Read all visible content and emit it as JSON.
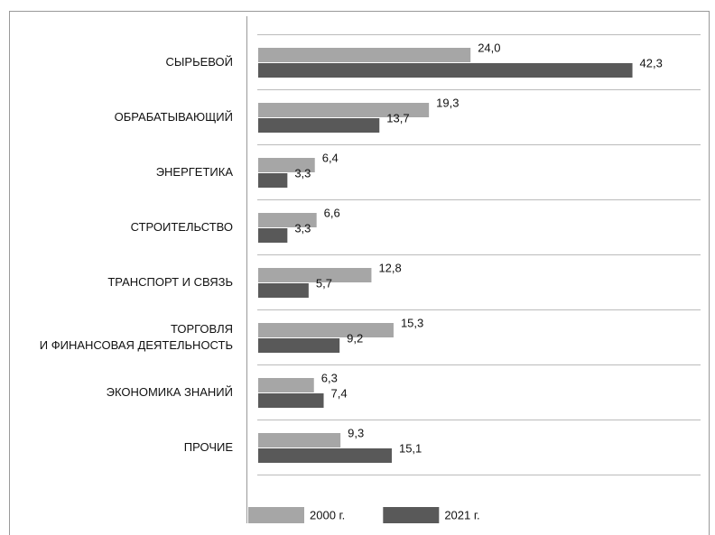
{
  "chart_data": {
    "type": "bar",
    "orientation": "horizontal",
    "categories": [
      "СЫРЬЕВОЙ",
      "ОБРАБАТЫВАЮЩИЙ",
      "ЭНЕРГЕТИКА",
      "СТРОИТЕЛЬСТВО",
      "ТРАНСПОРТ И СВЯЗЬ",
      "ТОРГОВЛЯ\nИ ФИНАНСОВАЯ ДЕЯТЕЛЬНОСТЬ",
      "ЭКОНОМИКА ЗНАНИЙ",
      "ПРОЧИЕ"
    ],
    "series": [
      {
        "name": "2000 г.",
        "color": "#a6a6a6",
        "values": [
          24.0,
          19.3,
          6.4,
          6.6,
          12.8,
          15.3,
          6.3,
          9.3
        ],
        "value_labels": [
          "24,0",
          "19,3",
          "6,4",
          "6,6",
          "12,8",
          "15,3",
          "6,3",
          "9,3"
        ]
      },
      {
        "name": "2021 г.",
        "color": "#595959",
        "values": [
          42.3,
          13.7,
          3.3,
          3.3,
          5.7,
          9.2,
          7.4,
          15.1
        ],
        "value_labels": [
          "42,3",
          "13,7",
          "3,3",
          "3,3",
          "5,7",
          "9,2",
          "7,4",
          "15,1"
        ]
      }
    ],
    "xlim": [
      0,
      50
    ],
    "legend": "bottom"
  }
}
